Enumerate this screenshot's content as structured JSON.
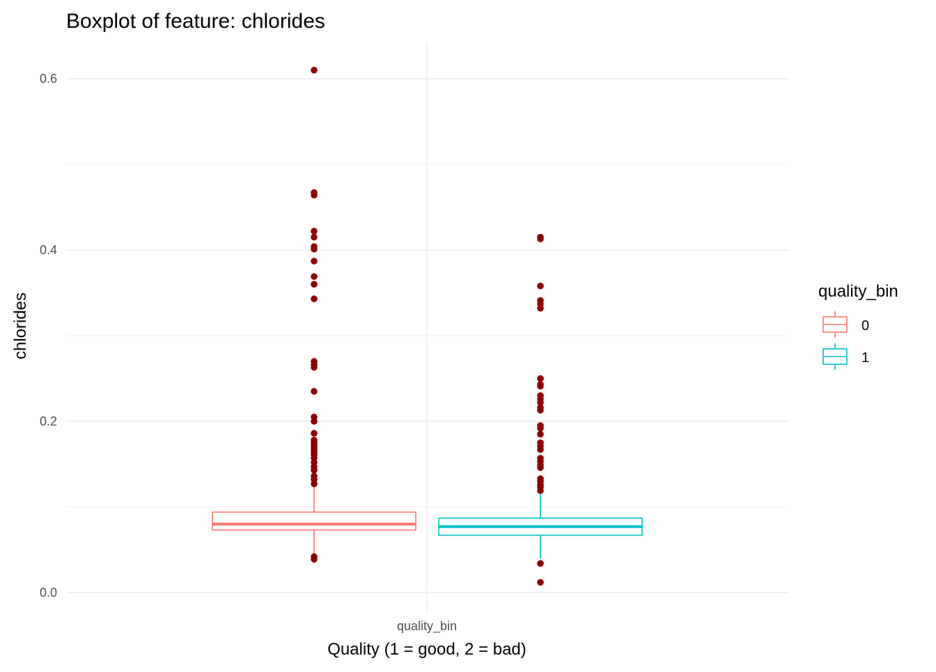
{
  "chart_data": {
    "type": "boxplot",
    "title": "Boxplot of feature: chlorides",
    "xlabel": "Quality (1 = good, 2 = bad)",
    "ylabel": "chlorides",
    "x_tick_label": "quality_bin",
    "ylim": [
      -0.004,
      0.64
    ],
    "y_ticks": [
      0.0,
      0.2,
      0.4,
      0.6
    ],
    "y_tick_labels": [
      "0.0",
      "0.2",
      "0.4",
      "0.6"
    ],
    "grid": true,
    "legend": {
      "title": "quality_bin",
      "placement": "right"
    },
    "outlier_color": "#8b0000",
    "series": [
      {
        "name": "0",
        "color": "#f8766d",
        "whisker_low": 0.044,
        "q1": 0.073,
        "median": 0.08,
        "q3": 0.094,
        "whisker_high": 0.125,
        "outliers": [
          0.61,
          0.467,
          0.464,
          0.422,
          0.415,
          0.404,
          0.401,
          0.387,
          0.369,
          0.36,
          0.343,
          0.27,
          0.266,
          0.263,
          0.235,
          0.205,
          0.2,
          0.186,
          0.178,
          0.175,
          0.172,
          0.169,
          0.166,
          0.164,
          0.161,
          0.157,
          0.152,
          0.147,
          0.143,
          0.136,
          0.132,
          0.127,
          0.042,
          0.039
        ]
      },
      {
        "name": "1",
        "color": "#00bfc4",
        "whisker_low": 0.04,
        "q1": 0.067,
        "median": 0.077,
        "q3": 0.087,
        "whisker_high": 0.117,
        "outliers": [
          0.415,
          0.413,
          0.358,
          0.341,
          0.337,
          0.332,
          0.25,
          0.243,
          0.241,
          0.23,
          0.226,
          0.222,
          0.216,
          0.213,
          0.195,
          0.192,
          0.185,
          0.175,
          0.171,
          0.167,
          0.157,
          0.153,
          0.149,
          0.146,
          0.133,
          0.13,
          0.126,
          0.123,
          0.119,
          0.034,
          0.012
        ]
      }
    ]
  }
}
